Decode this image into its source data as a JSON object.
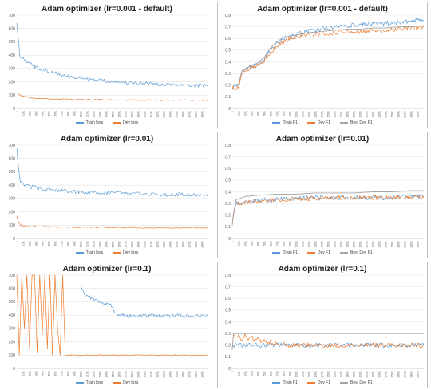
{
  "colors": {
    "train": "#5b9bd5",
    "dev": "#ed7d31",
    "best": "#a5a5a5",
    "grid": "#e3e3e3",
    "axis": "#bfbfbf",
    "text": "#595959"
  },
  "chart_data": [
    {
      "type": "line",
      "title": "Adam optimizer (lr=0.001 - default)",
      "metric": "loss",
      "ylim": [
        0,
        700
      ],
      "yticks": [
        0,
        100,
        200,
        300,
        400,
        500,
        600,
        700
      ],
      "xticks": [
        "1",
        "101",
        "201",
        "301",
        "401",
        "501",
        "601",
        "701",
        "801",
        "901",
        "1001",
        "1101",
        "1201",
        "1301",
        "1401",
        "1501",
        "1601",
        "1701",
        "1801",
        "1901",
        "2001",
        "2101",
        "2201",
        "2301",
        "2401",
        "2501",
        "2601",
        "2701",
        "2801",
        "2901"
      ],
      "xmax": 3000,
      "grid": true,
      "legend": "bottom",
      "series": [
        {
          "name": "Train loss",
          "color": "#5b9bd5",
          "x": [
            1,
            50,
            100,
            200,
            300,
            400,
            500,
            600,
            700,
            800,
            900,
            1000,
            1200,
            1400,
            1600,
            1800,
            2000,
            2200,
            2400,
            2600,
            2800,
            3000
          ],
          "values": [
            640,
            400,
            370,
            340,
            310,
            290,
            275,
            265,
            255,
            245,
            235,
            225,
            212,
            205,
            198,
            192,
            188,
            184,
            180,
            177,
            174,
            172
          ]
        },
        {
          "name": "Dev loss",
          "color": "#ed7d31",
          "x": [
            1,
            50,
            100,
            200,
            300,
            500,
            700,
            1000,
            1500,
            2000,
            2500,
            3000
          ],
          "values": [
            120,
            100,
            90,
            82,
            77,
            72,
            70,
            67,
            64,
            63,
            62,
            61
          ]
        }
      ]
    },
    {
      "type": "line",
      "title": "Adam optimizer (lr=0.001 - default)",
      "metric": "f1",
      "ylim": [
        0,
        0.8
      ],
      "yticks": [
        0,
        0.1,
        0.2,
        0.3,
        0.4,
        0.5,
        0.6,
        0.7,
        0.8
      ],
      "xticks": [
        "1",
        "101",
        "201",
        "301",
        "401",
        "501",
        "601",
        "701",
        "801",
        "901",
        "1001",
        "1101",
        "1201",
        "1301",
        "1401",
        "1501",
        "1601",
        "1701",
        "1801",
        "1901",
        "2001",
        "2101",
        "2201",
        "2301",
        "2401",
        "2501",
        "2601",
        "2701",
        "2801",
        "2901"
      ],
      "xmax": 3000,
      "grid": true,
      "legend": "bottom",
      "series": [
        {
          "name": "Train F1",
          "color": "#5b9bd5",
          "x": [
            1,
            100,
            150,
            200,
            300,
            400,
            500,
            600,
            700,
            800,
            900,
            1000,
            1200,
            1400,
            1600,
            1800,
            2000,
            2200,
            2400,
            2600,
            2800,
            3000
          ],
          "values": [
            0.18,
            0.2,
            0.3,
            0.33,
            0.36,
            0.38,
            0.42,
            0.5,
            0.55,
            0.6,
            0.62,
            0.64,
            0.66,
            0.68,
            0.7,
            0.71,
            0.72,
            0.73,
            0.73,
            0.74,
            0.75,
            0.76
          ]
        },
        {
          "name": "Dev F1",
          "color": "#ed7d31",
          "x": [
            1,
            100,
            150,
            200,
            300,
            400,
            500,
            600,
            700,
            800,
            900,
            1000,
            1200,
            1400,
            1600,
            1800,
            2000,
            2200,
            2400,
            2600,
            2800,
            3000
          ],
          "values": [
            0.17,
            0.19,
            0.29,
            0.32,
            0.35,
            0.37,
            0.41,
            0.48,
            0.53,
            0.57,
            0.59,
            0.61,
            0.63,
            0.64,
            0.65,
            0.66,
            0.66,
            0.67,
            0.67,
            0.68,
            0.69,
            0.7
          ]
        },
        {
          "name": "Best Dev F1",
          "color": "#a5a5a5",
          "x": [
            1,
            100,
            150,
            200,
            300,
            400,
            500,
            600,
            700,
            800,
            900,
            1000,
            1200,
            1400,
            1600,
            1800,
            2000,
            2200,
            2400,
            2600,
            2800,
            3000
          ],
          "values": [
            0.2,
            0.21,
            0.32,
            0.34,
            0.37,
            0.39,
            0.44,
            0.52,
            0.57,
            0.61,
            0.62,
            0.63,
            0.65,
            0.66,
            0.67,
            0.68,
            0.68,
            0.69,
            0.69,
            0.7,
            0.7,
            0.71
          ]
        }
      ]
    },
    {
      "type": "line",
      "title": "Adam optimizer (lr=0.01)",
      "metric": "loss",
      "ylim": [
        0,
        700
      ],
      "yticks": [
        0,
        100,
        200,
        300,
        400,
        500,
        600,
        700
      ],
      "xticks": [
        "1",
        "101",
        "201",
        "301",
        "401",
        "501",
        "601",
        "701",
        "801",
        "901",
        "1001",
        "1101",
        "1201",
        "1301",
        "1401",
        "1501",
        "1601",
        "1701",
        "1801",
        "1901",
        "2001",
        "2101",
        "2201",
        "2301",
        "2401",
        "2501",
        "2601",
        "2701",
        "2801",
        "2901"
      ],
      "xmax": 3000,
      "grid": true,
      "legend": "bottom",
      "series": [
        {
          "name": "Train loss",
          "color": "#5b9bd5",
          "x": [
            1,
            30,
            60,
            100,
            200,
            300,
            400,
            600,
            800,
            1000,
            1200,
            1400,
            1600,
            1800,
            2000,
            2200,
            2400,
            2600,
            2800,
            3000
          ],
          "values": [
            680,
            520,
            430,
            400,
            390,
            380,
            370,
            360,
            355,
            350,
            345,
            340,
            340,
            335,
            335,
            332,
            330,
            330,
            328,
            330
          ]
        },
        {
          "name": "Dev loss",
          "color": "#ed7d31",
          "x": [
            1,
            30,
            60,
            100,
            200,
            400,
            700,
            1000,
            1500,
            2000,
            2500,
            3000
          ],
          "values": [
            170,
            120,
            100,
            95,
            90,
            88,
            86,
            84,
            82,
            80,
            80,
            80
          ]
        }
      ]
    },
    {
      "type": "line",
      "title": "Adam optimizer (lr=0.01)",
      "metric": "f1",
      "ylim": [
        0,
        0.8
      ],
      "yticks": [
        0,
        0.1,
        0.2,
        0.3,
        0.4,
        0.5,
        0.6,
        0.7,
        0.8
      ],
      "xticks": [
        "1",
        "101",
        "201",
        "301",
        "401",
        "501",
        "601",
        "701",
        "801",
        "901",
        "1001",
        "1101",
        "1201",
        "1301",
        "1401",
        "1501",
        "1601",
        "1701",
        "1801",
        "1901",
        "2001",
        "2101",
        "2201",
        "2301",
        "2401",
        "2501",
        "2601",
        "2701",
        "2801",
        "2901"
      ],
      "xmax": 3000,
      "grid": true,
      "legend": "bottom",
      "series": [
        {
          "name": "Train F1",
          "color": "#5b9bd5",
          "x": [
            1,
            30,
            60,
            100,
            200,
            400,
            600,
            800,
            1000,
            1200,
            1400,
            1600,
            1800,
            2000,
            2200,
            2400,
            2600,
            2800,
            3000
          ],
          "values": [
            0.12,
            0.25,
            0.3,
            0.31,
            0.32,
            0.33,
            0.33,
            0.34,
            0.34,
            0.35,
            0.35,
            0.35,
            0.35,
            0.35,
            0.35,
            0.35,
            0.36,
            0.36,
            0.36
          ]
        },
        {
          "name": "Dev F1",
          "color": "#ed7d31",
          "x": [
            1,
            30,
            60,
            100,
            200,
            400,
            600,
            800,
            1000,
            1200,
            1400,
            1600,
            1800,
            2000,
            2200,
            2400,
            2600,
            2800,
            3000
          ],
          "values": [
            0.12,
            0.24,
            0.29,
            0.3,
            0.31,
            0.32,
            0.33,
            0.33,
            0.34,
            0.34,
            0.34,
            0.35,
            0.35,
            0.35,
            0.35,
            0.35,
            0.35,
            0.35,
            0.35
          ]
        },
        {
          "name": "Best Dev F1",
          "color": "#a5a5a5",
          "x": [
            1,
            60,
            200,
            400,
            700,
            1000,
            1300,
            1600,
            1900,
            2200,
            2500,
            2800,
            3000
          ],
          "values": [
            0.13,
            0.33,
            0.36,
            0.37,
            0.38,
            0.38,
            0.39,
            0.39,
            0.39,
            0.4,
            0.4,
            0.41,
            0.41
          ]
        }
      ]
    },
    {
      "type": "line",
      "title": "Adam optimizer (lr=0.1)",
      "metric": "loss",
      "ylim": [
        0,
        700
      ],
      "yticks": [
        0,
        100,
        200,
        300,
        400,
        500,
        600,
        700
      ],
      "xticks": [
        "1",
        "101",
        "201",
        "301",
        "401",
        "501",
        "601",
        "701",
        "801",
        "901",
        "1001",
        "1101",
        "1201",
        "1301",
        "1401",
        "1501",
        "1601",
        "1701",
        "1801",
        "1901",
        "2001",
        "2101",
        "2201",
        "2301",
        "2401",
        "2501",
        "2601",
        "2701",
        "2801",
        "2901"
      ],
      "xmax": 3000,
      "grid": true,
      "legend": "bottom",
      "series": [
        {
          "name": "Train loss",
          "color": "#5b9bd5",
          "x": [
            1000,
            1050,
            1100,
            1200,
            1300,
            1400,
            1500,
            1550,
            1600,
            1700,
            2000,
            2500,
            3000
          ],
          "values": [
            620,
            560,
            540,
            520,
            500,
            480,
            470,
            410,
            400,
            395,
            395,
            395,
            395
          ]
        },
        {
          "name": "Dev loss",
          "color": "#ed7d31",
          "x": [
            1,
            40,
            80,
            120,
            160,
            200,
            240,
            280,
            320,
            360,
            400,
            440,
            480,
            520,
            560,
            600,
            640,
            680,
            720,
            760,
            1000,
            2000,
            3000
          ],
          "values": [
            700,
            100,
            700,
            300,
            700,
            150,
            700,
            700,
            120,
            700,
            250,
            700,
            150,
            700,
            100,
            700,
            300,
            100,
            700,
            100,
            100,
            100,
            100
          ]
        }
      ]
    },
    {
      "type": "line",
      "title": "Adam optimizer (lr=0.1)",
      "metric": "f1",
      "ylim": [
        0,
        0.8
      ],
      "yticks": [
        0,
        0.1,
        0.2,
        0.3,
        0.4,
        0.5,
        0.6,
        0.7,
        0.8
      ],
      "xticks": [
        "1",
        "101",
        "201",
        "301",
        "401",
        "501",
        "601",
        "701",
        "801",
        "901",
        "1001",
        "1101",
        "1201",
        "1301",
        "1401",
        "1501",
        "1601",
        "1701",
        "1801",
        "1901",
        "2001",
        "2101",
        "2201",
        "2301",
        "2401",
        "2501",
        "2601",
        "2701",
        "2801",
        "2901"
      ],
      "xmax": 3000,
      "grid": true,
      "legend": "bottom",
      "series": [
        {
          "name": "Train F1",
          "color": "#5b9bd5",
          "x": [
            1,
            3000
          ],
          "values": [
            0.2,
            0.2
          ]
        },
        {
          "name": "Dev F1",
          "color": "#ed7d31",
          "x": [
            1,
            20,
            50,
            100,
            150,
            200,
            250,
            300,
            350,
            400,
            450,
            500,
            550,
            600,
            650,
            700,
            750,
            800,
            850,
            900,
            3000
          ],
          "values": [
            0.16,
            0.3,
            0.27,
            0.29,
            0.25,
            0.28,
            0.24,
            0.27,
            0.23,
            0.26,
            0.22,
            0.25,
            0.21,
            0.24,
            0.2,
            0.23,
            0.2,
            0.22,
            0.2,
            0.2,
            0.2
          ]
        },
        {
          "name": "Best Dev F1",
          "color": "#a5a5a5",
          "x": [
            1,
            20,
            3000
          ],
          "values": [
            0.16,
            0.3,
            0.3
          ]
        }
      ]
    }
  ]
}
